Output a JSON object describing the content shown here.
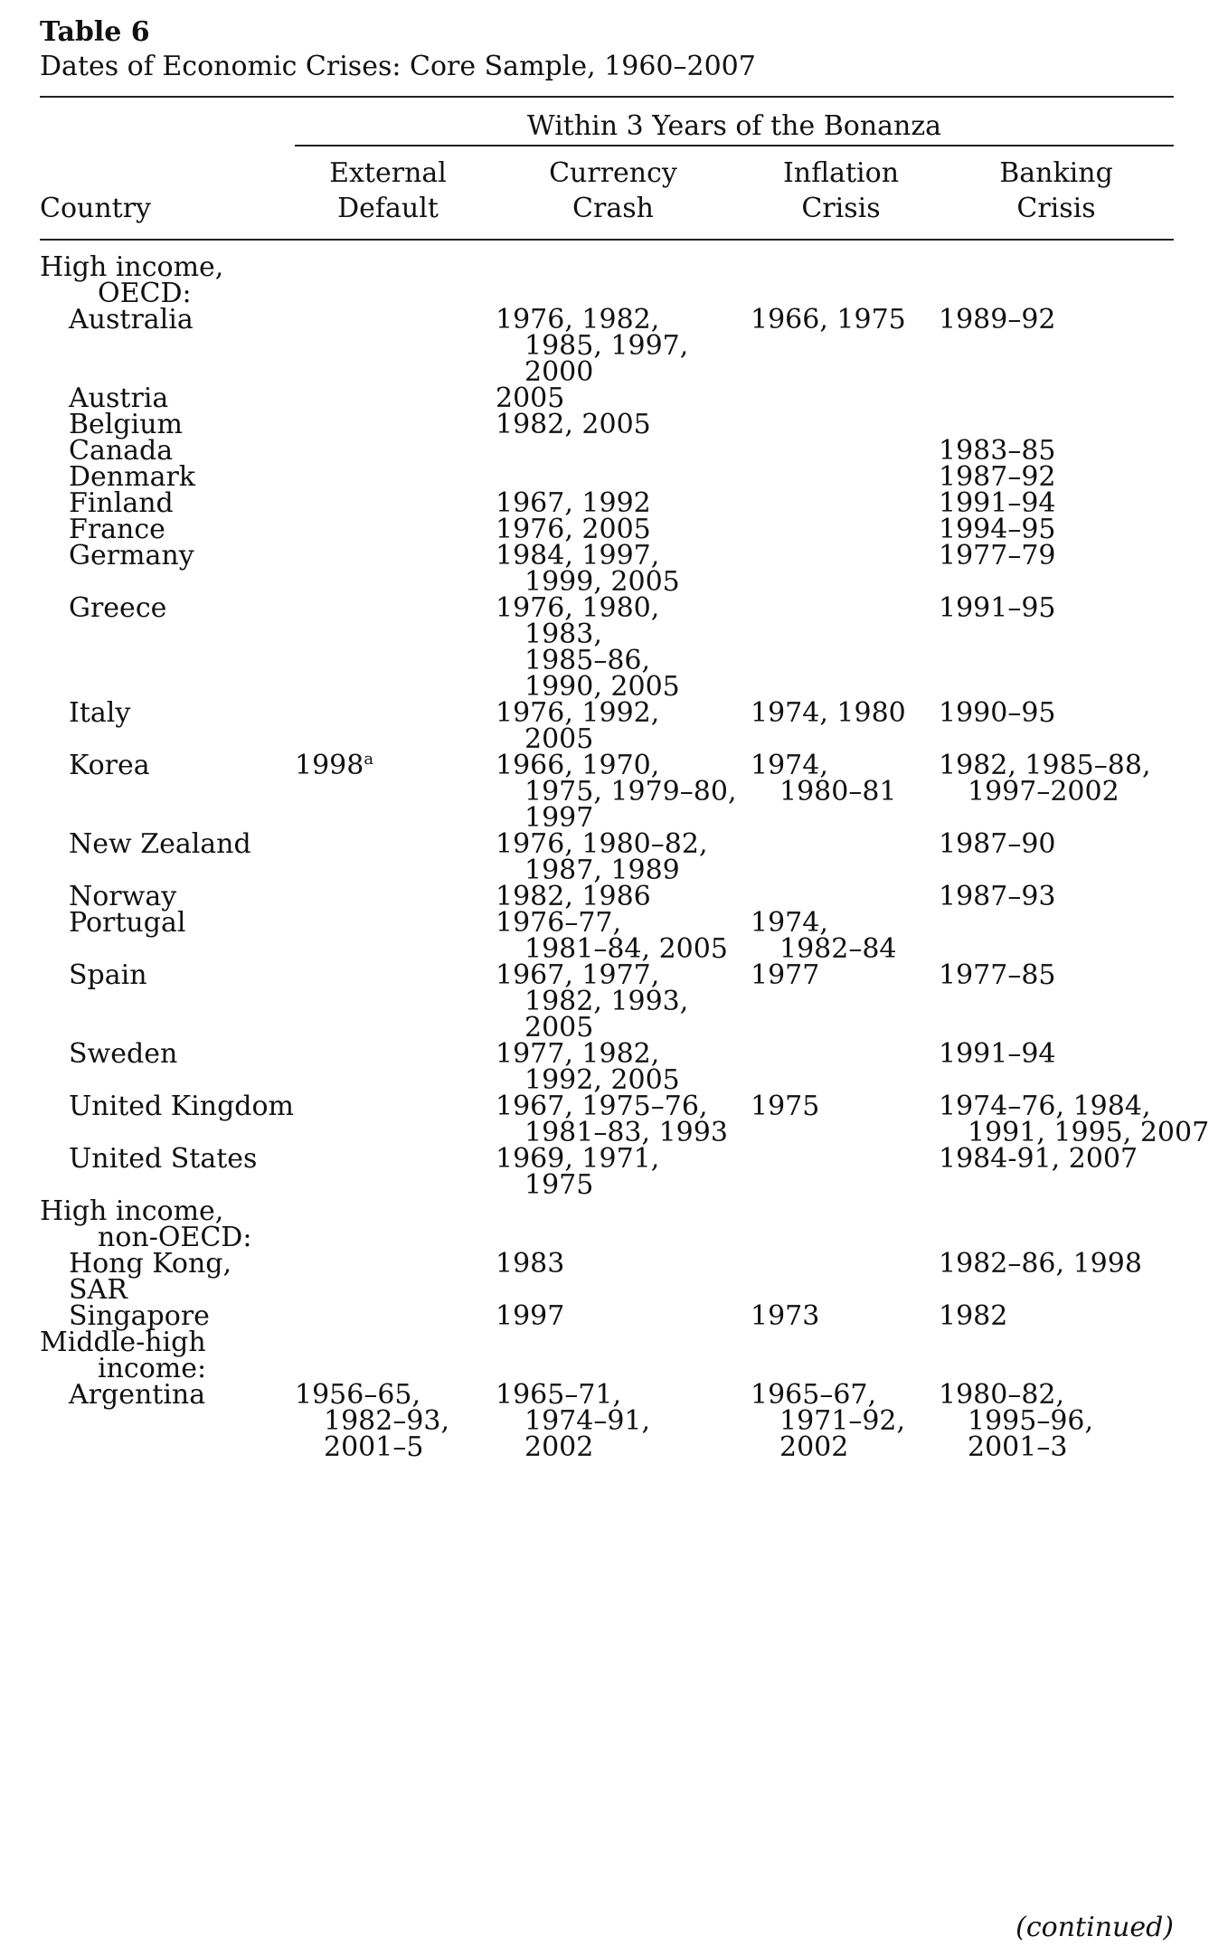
{
  "table": {
    "label": "Table 6",
    "caption": "Dates of Economic Crises: Core Sample, 1960–2007",
    "spanner": "Within 3 Years of the Bonanza",
    "headers": {
      "country": "Country",
      "external_default": [
        "External",
        "Default"
      ],
      "currency_crash": [
        "Currency",
        "Crash"
      ],
      "inflation_crisis": [
        "Inflation",
        "Crisis"
      ],
      "banking_crisis": [
        "Banking",
        "Crisis"
      ]
    },
    "rows": [
      {
        "type": "group",
        "country": [
          "High income,",
          "OECD:"
        ]
      },
      {
        "country": [
          "Australia"
        ],
        "external": [],
        "currency": [
          "1976, 1982,",
          "1985, 1997,",
          "2000"
        ],
        "inflation": [
          "1966, 1975"
        ],
        "banking": [
          "1989–92"
        ]
      },
      {
        "country": [
          "Austria"
        ],
        "external": [],
        "currency": [
          "2005"
        ],
        "inflation": [],
        "banking": []
      },
      {
        "country": [
          "Belgium"
        ],
        "external": [],
        "currency": [
          "1982, 2005"
        ],
        "inflation": [],
        "banking": []
      },
      {
        "country": [
          "Canada"
        ],
        "external": [],
        "currency": [],
        "inflation": [],
        "banking": [
          "1983–85"
        ]
      },
      {
        "country": [
          "Denmark"
        ],
        "external": [],
        "currency": [],
        "inflation": [],
        "banking": [
          "1987–92"
        ]
      },
      {
        "country": [
          "Finland"
        ],
        "external": [],
        "currency": [
          "1967, 1992"
        ],
        "inflation": [],
        "banking": [
          "1991–94"
        ]
      },
      {
        "country": [
          "France"
        ],
        "external": [],
        "currency": [
          "1976, 2005"
        ],
        "inflation": [],
        "banking": [
          "1994–95"
        ]
      },
      {
        "country": [
          "Germany"
        ],
        "external": [],
        "currency": [
          "1984, 1997,",
          "1999, 2005"
        ],
        "inflation": [],
        "banking": [
          "1977–79"
        ]
      },
      {
        "country": [
          "Greece"
        ],
        "external": [],
        "currency": [
          "1976, 1980,",
          "1983,",
          "1985–86,",
          "1990, 2005"
        ],
        "inflation": [],
        "banking": [
          "1991–95"
        ]
      },
      {
        "country": [
          "Italy"
        ],
        "external": [],
        "currency": [
          "1976, 1992,",
          "2005"
        ],
        "inflation": [
          "1974, 1980"
        ],
        "banking": [
          "1990–95"
        ]
      },
      {
        "country": [
          "Korea"
        ],
        "external": [
          "1998"
        ],
        "external_sup": "a",
        "currency": [
          "1966, 1970,",
          "1975, 1979–80,",
          "1997"
        ],
        "inflation": [
          "1974,",
          "1980–81"
        ],
        "banking": [
          "1982, 1985–88,",
          "1997–2002"
        ]
      },
      {
        "country": [
          "New Zealand"
        ],
        "external": [],
        "currency": [
          "1976, 1980–82,",
          "1987, 1989"
        ],
        "inflation": [],
        "banking": [
          "1987–90"
        ]
      },
      {
        "country": [
          "Norway"
        ],
        "external": [],
        "currency": [
          "1982, 1986"
        ],
        "inflation": [],
        "banking": [
          "1987–93"
        ]
      },
      {
        "country": [
          "Portugal"
        ],
        "external": [],
        "currency": [
          "1976–77,",
          "1981–84, 2005"
        ],
        "inflation": [
          "1974,",
          "1982–84"
        ],
        "banking": []
      },
      {
        "country": [
          "Spain"
        ],
        "external": [],
        "currency": [
          "1967, 1977,",
          "1982, 1993,",
          "2005"
        ],
        "inflation": [
          "1977"
        ],
        "banking": [
          "1977–85"
        ]
      },
      {
        "country": [
          "Sweden"
        ],
        "external": [],
        "currency": [
          "1977, 1982,",
          "1992, 2005"
        ],
        "inflation": [],
        "banking": [
          "1991–94"
        ]
      },
      {
        "country": [
          "United Kingdom"
        ],
        "external": [],
        "currency": [
          "1967, 1975–76,",
          "1981–83, 1993"
        ],
        "inflation": [
          "1975"
        ],
        "banking": [
          "1974–76, 1984,",
          "1991, 1995, 2007"
        ]
      },
      {
        "country": [
          "United States"
        ],
        "external": [],
        "currency": [
          "1969, 1971,",
          "1975"
        ],
        "inflation": [],
        "banking": [
          "1984-91, 2007"
        ]
      },
      {
        "type": "group",
        "country": [
          "High income,",
          "non-OECD:"
        ]
      },
      {
        "country": [
          "Hong Kong,",
          "SAR"
        ],
        "external": [],
        "currency": [
          "1983"
        ],
        "inflation": [],
        "banking": [
          "1982–86, 1998"
        ]
      },
      {
        "country": [
          "Singapore"
        ],
        "external": [],
        "currency": [
          "1997"
        ],
        "inflation": [
          "1973"
        ],
        "banking": [
          "1982"
        ]
      },
      {
        "type": "group",
        "country": [
          "Middle-high",
          "income:"
        ]
      },
      {
        "country": [
          "Argentina"
        ],
        "external": [
          "1956–65,",
          "1982–93,",
          "2001–5"
        ],
        "currency": [
          "1965–71,",
          "1974–91,",
          "2002"
        ],
        "inflation": [
          "1965–67,",
          "1971–92,",
          "2002"
        ],
        "banking": [
          "1980–82,",
          "1995–96,",
          "2001–3"
        ]
      }
    ],
    "continued": "(continued)"
  }
}
